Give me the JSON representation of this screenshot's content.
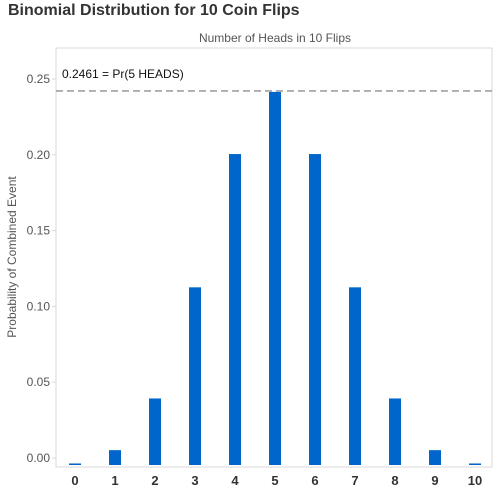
{
  "chart_data": {
    "type": "bar",
    "title": "Binomial Distribution for 10 Coin Flips",
    "xlabel": "Number of Heads in 10 Flips",
    "ylabel": "Probability of Combined Event",
    "categories": [
      "0",
      "1",
      "2",
      "3",
      "4",
      "5",
      "6",
      "7",
      "8",
      "9",
      "10"
    ],
    "values": [
      0.001,
      0.0098,
      0.0439,
      0.1172,
      0.2051,
      0.2461,
      0.2051,
      0.1172,
      0.0439,
      0.0098,
      0.001
    ],
    "ylim": [
      0,
      0.26
    ],
    "yticks": [
      "0.00",
      "0.05",
      "0.10",
      "0.15",
      "0.20",
      "0.25"
    ],
    "reference_line": {
      "value": 0.2461,
      "label": "0.2461 = Pr(5 HEADS)"
    },
    "bar_color": "#0066CC",
    "ref_line_color": "#A0A0A0",
    "grid": false
  }
}
